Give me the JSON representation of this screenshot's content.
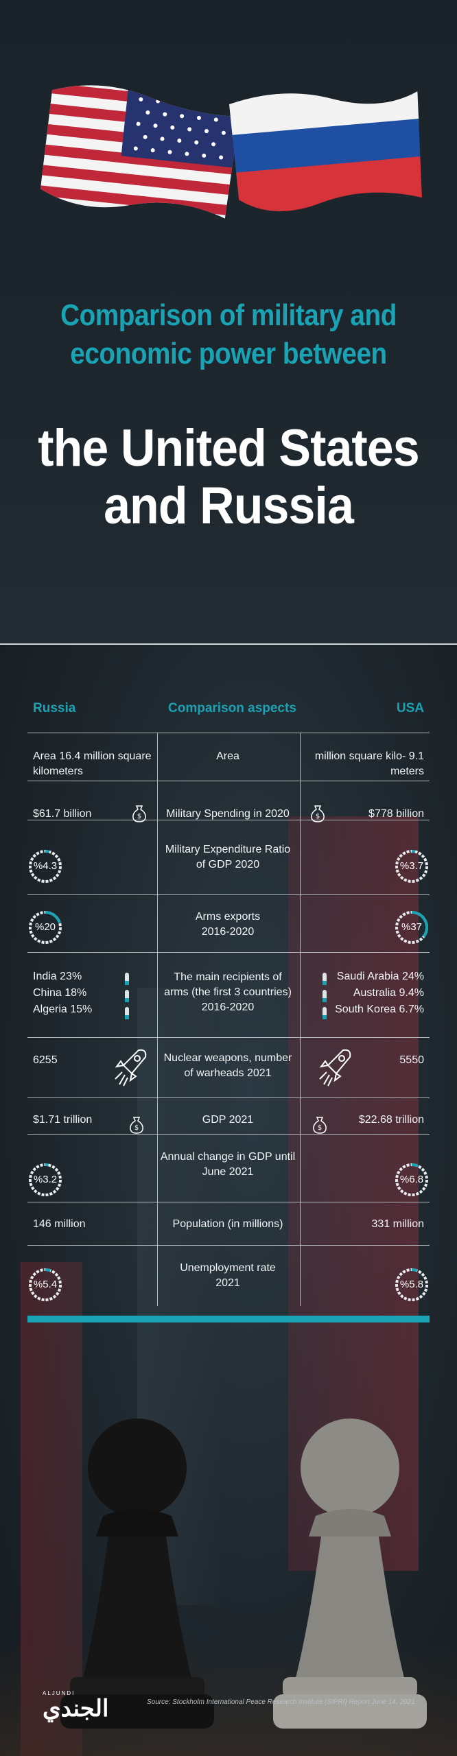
{
  "header": {
    "title_line1": "Comparison of military and",
    "title_line2": "economic power between",
    "subtitle_line1": "the United States",
    "subtitle_line2": "and Russia"
  },
  "table": {
    "col_left": "Russia",
    "col_mid": "Comparison aspects",
    "col_right": "USA",
    "rows": [
      {
        "aspect_l1": "Area",
        "aspect_l2": "",
        "russia": "Area 16.4 million square kilometers",
        "usa": "million square kilo- 9.1 meters"
      },
      {
        "aspect_l1": "Military Spending in 2020",
        "aspect_l2": "",
        "russia": "$61.7 billion",
        "usa": "$778 billion"
      },
      {
        "aspect_l1": "Military Expenditure Ratio",
        "aspect_l2": "of GDP 2020",
        "russia": "%4.3",
        "usa": "%3.7"
      },
      {
        "aspect_l1": "Arms exports",
        "aspect_l2": "2016-2020",
        "russia": "%20",
        "usa": "%37"
      },
      {
        "aspect_l1": "The main recipients of",
        "aspect_l2": "arms (the first 3 countries)",
        "aspect_l3": "2016-2020",
        "russia_list": [
          "India 23%",
          "China 18%",
          "Algeria 15%"
        ],
        "usa_list": [
          "Saudi Arabia 24%",
          "Australia 9.4%",
          "South Korea 6.7%"
        ]
      },
      {
        "aspect_l1": "Nuclear weapons, number",
        "aspect_l2": "of warheads 2021",
        "russia": "6255",
        "usa": "5550"
      },
      {
        "aspect_l1": "GDP 2021",
        "aspect_l2": "",
        "russia": "$1.71 trillion",
        "usa": "$22.68 trillion"
      },
      {
        "aspect_l1": "Annual change in GDP until",
        "aspect_l2": "June 2021",
        "russia": "%3.2",
        "usa": "%6.8"
      },
      {
        "aspect_l1": "Population (in millions)",
        "aspect_l2": "",
        "russia": "146 million",
        "usa": "331 million"
      },
      {
        "aspect_l1": "Unemployment rate",
        "aspect_l2": "2021",
        "russia": "%5.4",
        "usa": "%5.8"
      }
    ]
  },
  "footer": {
    "logo_small": "ALJUNDI",
    "logo_big": "الجندي",
    "source": "Source: Stockholm International Peace Research Institute (SIPRI) Report June 14, 2021"
  },
  "colors": {
    "accent": "#1aa2b5",
    "background": "#1b2329"
  },
  "icons": [
    "us-flag-icon",
    "russia-flag-icon",
    "money-bag-icon",
    "rocket-icon",
    "bullet-icon",
    "chess-pawn-icon"
  ]
}
